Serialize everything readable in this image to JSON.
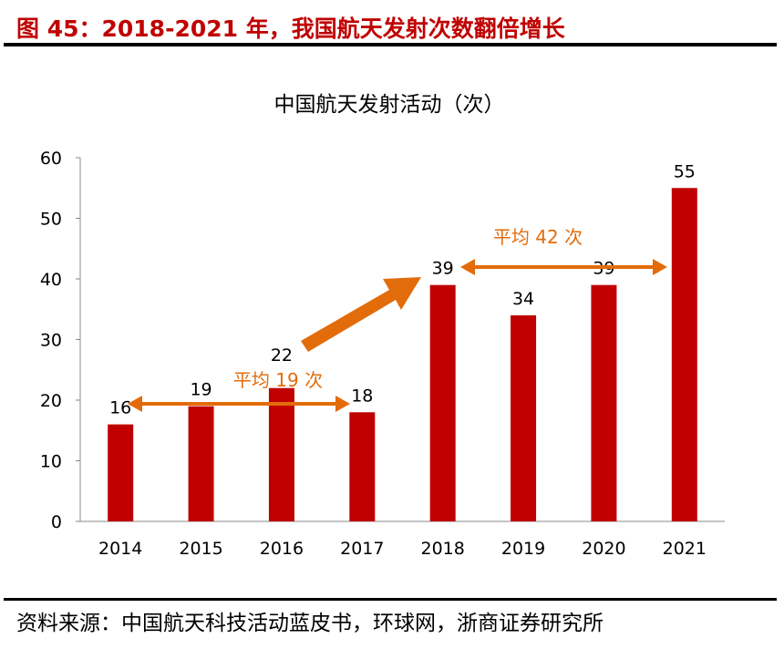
{
  "header": {
    "title": "图 45：2018-2021 年，我国航天发射次数翻倍增长"
  },
  "footer": {
    "source": "资料来源：中国航天科技活动蓝皮书，环球网，浙商证券研究所"
  },
  "chart_data": {
    "type": "bar",
    "title": "中国航天发射活动（次）",
    "categories": [
      "2014",
      "2015",
      "2016",
      "2017",
      "2018",
      "2019",
      "2020",
      "2021"
    ],
    "values": [
      16,
      19,
      22,
      18,
      39,
      34,
      39,
      55
    ],
    "ylim": [
      0,
      60
    ],
    "yticks": [
      0,
      10,
      20,
      30,
      40,
      50,
      60
    ],
    "grid": false,
    "bar_color": "#c00000",
    "annotation_color": "#e36c0a",
    "annotations": [
      {
        "text": "平均 19 次",
        "from": "2014",
        "to": "2017",
        "level": 19
      },
      {
        "text": "平均 42 次",
        "from": "2018",
        "to": "2021",
        "level": 42
      }
    ]
  }
}
